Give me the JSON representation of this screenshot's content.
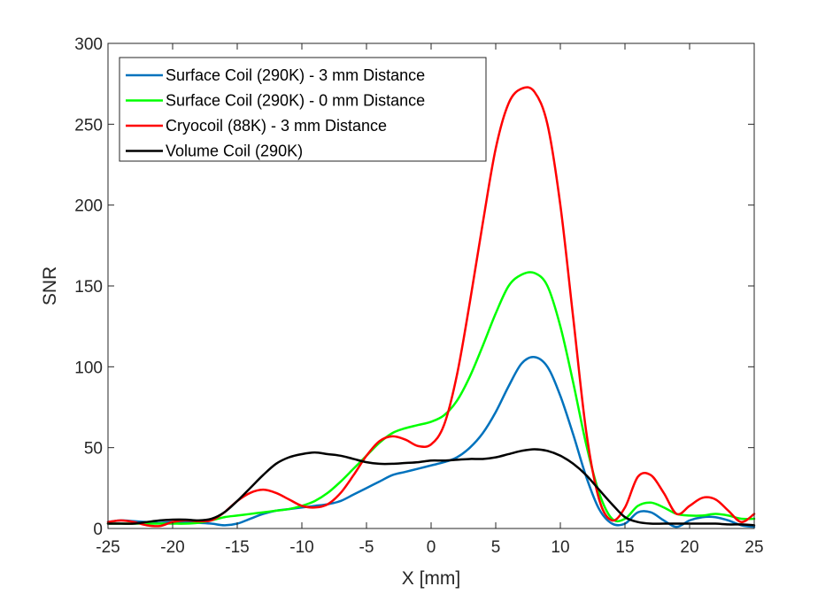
{
  "chart_data": {
    "type": "line",
    "title": "",
    "xlabel": "X [mm]",
    "ylabel": "SNR",
    "xlim": [
      -25,
      25
    ],
    "ylim": [
      0,
      300
    ],
    "xticks": [
      -25,
      -20,
      -15,
      -10,
      -5,
      0,
      5,
      10,
      15,
      20,
      25
    ],
    "yticks": [
      0,
      50,
      100,
      150,
      200,
      250,
      300
    ],
    "grid": false,
    "legend_position": "top-left",
    "series": [
      {
        "name": "Surface Coil (290K) - 3 mm Distance",
        "color": "#0072BD",
        "x": [
          -25,
          -24,
          -23,
          -22,
          -21,
          -20,
          -19,
          -18,
          -17,
          -16,
          -15,
          -14,
          -13,
          -12,
          -11,
          -10,
          -9,
          -8,
          -7,
          -6,
          -5,
          -4,
          -3,
          -2,
          -1,
          0,
          1,
          2,
          3,
          4,
          5,
          6,
          7,
          8,
          9,
          10,
          11,
          12,
          13,
          14,
          15,
          16,
          17,
          18,
          19,
          20,
          21,
          22,
          23,
          24,
          25
        ],
        "y": [
          4,
          5,
          4.5,
          4,
          3.5,
          4,
          4,
          3.5,
          3,
          2,
          3,
          6,
          9,
          11,
          12,
          13,
          14,
          15,
          17,
          21,
          25,
          29,
          33,
          35,
          37,
          39,
          41,
          44,
          50,
          59,
          72,
          88,
          102,
          106,
          100,
          82,
          58,
          32,
          12,
          3,
          3,
          10,
          10,
          5,
          1,
          5,
          7,
          7,
          5,
          2,
          1
        ]
      },
      {
        "name": "Surface Coil (290K) - 0 mm Distance",
        "color": "#00FF00",
        "x": [
          -25,
          -24,
          -23,
          -22,
          -21,
          -20,
          -19,
          -18,
          -17,
          -16,
          -15,
          -14,
          -13,
          -12,
          -11,
          -10,
          -9,
          -8,
          -7,
          -6,
          -5,
          -4,
          -3,
          -2,
          -1,
          0,
          1,
          2,
          3,
          4,
          5,
          6,
          7,
          8,
          9,
          10,
          11,
          12,
          13,
          14,
          15,
          16,
          17,
          18,
          19,
          20,
          21,
          22,
          23,
          24,
          25
        ],
        "y": [
          3,
          3,
          3,
          3,
          3,
          3,
          3,
          3.5,
          5,
          7,
          8,
          9,
          10,
          11,
          12,
          14,
          17,
          22,
          29,
          37,
          45,
          53,
          59,
          62,
          64,
          66,
          70,
          79,
          94,
          113,
          133,
          150,
          157,
          158,
          150,
          125,
          90,
          52,
          22,
          6,
          6,
          14,
          16,
          13,
          9,
          8,
          8,
          9,
          8,
          6,
          6
        ]
      },
      {
        "name": "Cryocoil (88K) - 3 mm Distance",
        "color": "#FF0000",
        "x": [
          -25,
          -24,
          -23,
          -22,
          -21,
          -20,
          -19,
          -18,
          -17,
          -16,
          -15,
          -14,
          -13,
          -12,
          -11,
          -10,
          -9,
          -8,
          -7,
          -6,
          -5,
          -4,
          -3,
          -2,
          -1,
          0,
          1,
          2,
          3,
          4,
          5,
          6,
          7,
          8,
          9,
          10,
          11,
          12,
          13,
          14,
          15,
          16,
          17,
          18,
          19,
          20,
          21,
          22,
          23,
          24,
          25
        ],
        "y": [
          4,
          5,
          4,
          2,
          1.5,
          4,
          5,
          4.5,
          5,
          10,
          17,
          22,
          24,
          22,
          18,
          14,
          13,
          15,
          22,
          33,
          45,
          54,
          57,
          55,
          51,
          52,
          64,
          95,
          140,
          189,
          235,
          263,
          272,
          270,
          250,
          200,
          130,
          60,
          18,
          5,
          13,
          32,
          33,
          22,
          9,
          14,
          19,
          18,
          11,
          4,
          9
        ]
      },
      {
        "name": "Volume Coil (290K)",
        "color": "#000000",
        "x": [
          -25,
          -24,
          -23,
          -22,
          -21,
          -20,
          -19,
          -18,
          -17,
          -16,
          -15,
          -14,
          -13,
          -12,
          -11,
          -10,
          -9,
          -8,
          -7,
          -6,
          -5,
          -4,
          -3,
          -2,
          -1,
          0,
          1,
          2,
          3,
          4,
          5,
          6,
          7,
          8,
          9,
          10,
          11,
          12,
          13,
          14,
          15,
          16,
          17,
          18,
          19,
          20,
          21,
          22,
          23,
          24,
          25
        ],
        "y": [
          3,
          3,
          3,
          4,
          5,
          5.5,
          5.5,
          5,
          6,
          10,
          17,
          25,
          33,
          40,
          44,
          46,
          47,
          46,
          45,
          43,
          41,
          40,
          40,
          40.5,
          41,
          42,
          42,
          42.5,
          43,
          43,
          44,
          46,
          48,
          49,
          48,
          45,
          40,
          33,
          24,
          15,
          7,
          4,
          3,
          3,
          3,
          3,
          3,
          3,
          2.5,
          2.5,
          2
        ]
      }
    ]
  }
}
